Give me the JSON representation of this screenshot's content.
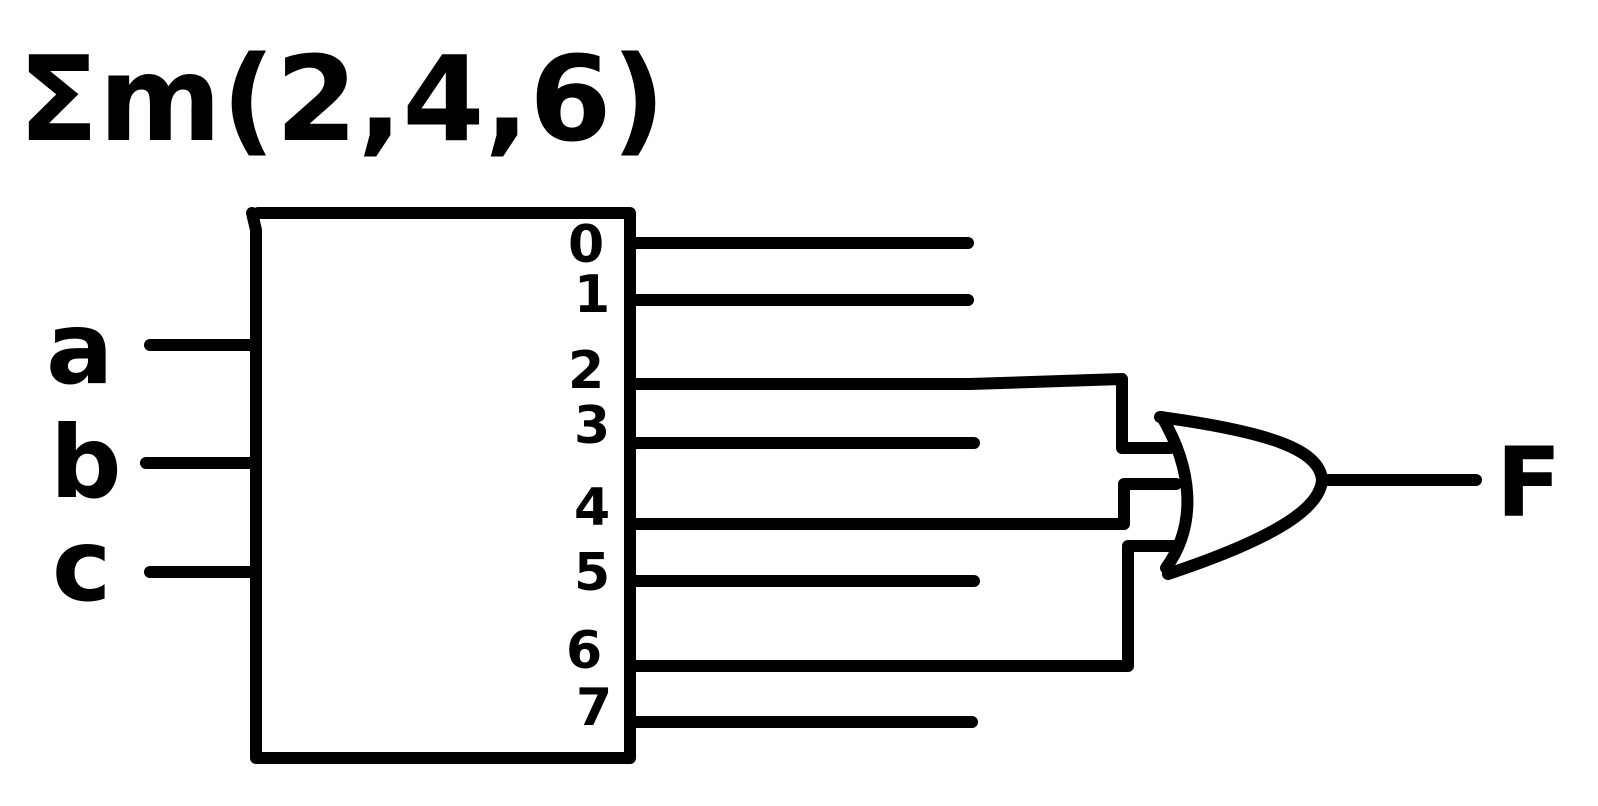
{
  "diagram": {
    "expression": "Σm(2,4,6)",
    "decoder": {
      "inputs": [
        "a",
        "b",
        "c"
      ],
      "outputs": [
        "0",
        "1",
        "2",
        "3",
        "4",
        "5",
        "6",
        "7"
      ],
      "gate_connected_outputs": [
        2,
        4,
        6
      ]
    },
    "gate": {
      "type": "OR"
    },
    "output_label": "F",
    "stroke_color": "#000000",
    "background_color": "#ffffff"
  }
}
